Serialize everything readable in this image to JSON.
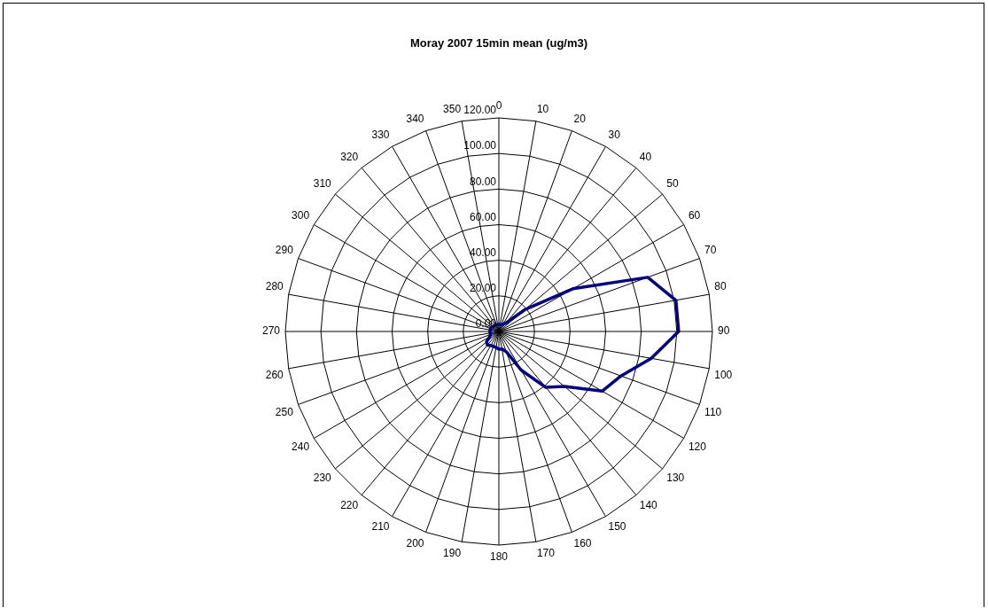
{
  "chart_data": {
    "type": "radar",
    "title": "Moray 2007 15min mean (ug/m3)",
    "categories": [
      "0",
      "10",
      "20",
      "30",
      "40",
      "50",
      "60",
      "70",
      "80",
      "90",
      "100",
      "110",
      "120",
      "130",
      "140",
      "150",
      "160",
      "170",
      "180",
      "190",
      "200",
      "210",
      "220",
      "230",
      "240",
      "250",
      "260",
      "270",
      "280",
      "290",
      "300",
      "310",
      "320",
      "330",
      "340",
      "350"
    ],
    "series": [
      {
        "color": "#000080",
        "values": [
          4,
          4,
          4,
          5,
          6,
          19,
          48,
          89,
          101,
          101,
          87,
          73,
          67,
          48,
          41,
          25,
          12,
          10,
          10,
          9,
          9,
          9,
          10,
          9,
          6,
          5,
          5,
          5,
          5,
          5,
          5,
          4,
          4,
          4,
          4,
          4
        ]
      }
    ],
    "ylim": [
      0,
      120
    ],
    "yticks": [
      {
        "value": 0,
        "label": "0.00"
      },
      {
        "value": 20,
        "label": "20.00"
      },
      {
        "value": 40,
        "label": "40.00"
      },
      {
        "value": 60,
        "label": "60.00"
      },
      {
        "value": 80,
        "label": "80.00"
      },
      {
        "value": 100,
        "label": "100.00"
      },
      {
        "value": 120,
        "label": "120.00"
      }
    ],
    "grid": true,
    "marker": "none",
    "line_style": "solid"
  }
}
